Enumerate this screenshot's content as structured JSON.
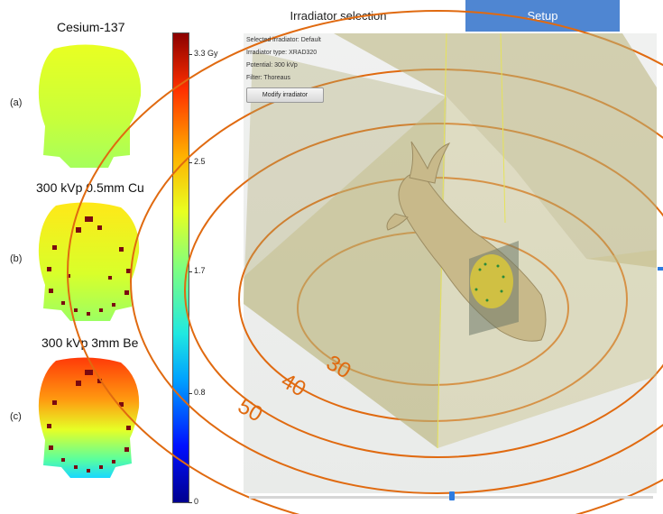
{
  "maps": [
    {
      "label": "(a)",
      "title": "Cesium-137"
    },
    {
      "label": "(b)",
      "title": "300 kVp 0.5mm Cu"
    },
    {
      "label": "(c)",
      "title": "300 kVp 3mm Be"
    }
  ],
  "colorbar": {
    "ticks": [
      {
        "value": 0,
        "label": "0"
      },
      {
        "value": 0.8,
        "label": "0.8"
      },
      {
        "value": 1.7,
        "label": "1.7"
      },
      {
        "value": 2.5,
        "label": "2.5"
      },
      {
        "value": 3.3,
        "label": "3.3 Gy"
      }
    ],
    "max": 3.45
  },
  "tabs": [
    {
      "label": "Irradiator selection",
      "active": false
    },
    {
      "label": "Setup",
      "active": true
    }
  ],
  "info": {
    "selected_irradiator": "Selected irradiator: Default",
    "irradiator_type": "Irradiator type: XRAD320",
    "potential": "Potential: 300 kVp",
    "filter": "Filter: Thoreaus"
  },
  "modify_button": "Modify irradiator",
  "isodose_labels": [
    "30",
    "40",
    "50"
  ],
  "colors": {
    "accent": "#4f86d2",
    "slider": "#2d7be0",
    "isodose": "#e06a10",
    "field": "#b9b27a"
  },
  "slider": {
    "value": 0.5
  }
}
